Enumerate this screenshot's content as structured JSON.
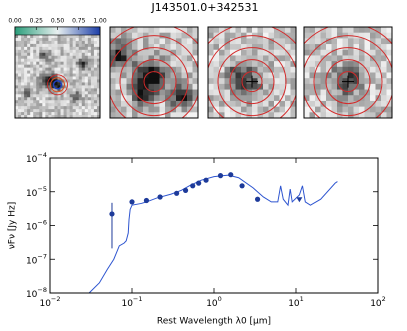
{
  "chart_data": {
    "type": "line",
    "title": "J143501.0+342531",
    "xlabel": "Rest Wavelength λ0 [μm]",
    "ylabel": "νFν [Jy Hz]",
    "xlog": true,
    "ylog": true,
    "xlim": [
      0.01,
      100
    ],
    "ylim": [
      1e-08,
      0.0001
    ],
    "xticks": [
      {
        "value": 0.01,
        "label": "10−2"
      },
      {
        "value": 0.1,
        "label": "10−1"
      },
      {
        "value": 1,
        "label": "100"
      },
      {
        "value": 10,
        "label": "101"
      },
      {
        "value": 100,
        "label": "102"
      }
    ],
    "yticks": [
      {
        "value": 1e-08,
        "label": "10−8"
      },
      {
        "value": 1e-07,
        "label": "10−7"
      },
      {
        "value": 1e-06,
        "label": "10−6"
      },
      {
        "value": 1e-05,
        "label": "10−5"
      },
      {
        "value": 0.0001,
        "label": "10−4"
      }
    ],
    "model": {
      "color": "#2e55d0",
      "x": [
        0.03,
        0.04,
        0.05,
        0.06,
        0.07,
        0.08,
        0.085,
        0.09,
        0.092,
        0.095,
        0.1,
        0.13,
        0.15,
        0.2,
        0.3,
        0.4,
        0.5,
        0.7,
        1.0,
        1.5,
        2,
        3,
        4,
        5,
        6,
        6.5,
        7,
        8,
        8.5,
        9,
        11,
        12,
        13,
        15,
        20,
        30,
        32
      ],
      "values": [
        1e-08,
        2e-08,
        5e-08,
        1e-07,
        2.5e-07,
        3e-07,
        3.5e-07,
        6e-07,
        1.5e-06,
        3e-06,
        4e-06,
        4.5e-06,
        5e-06,
        6.5e-06,
        8.5e-06,
        1.1e-05,
        1.5e-05,
        2.2e-05,
        2.8e-05,
        3.1e-05,
        2.6e-05,
        1.3e-05,
        7e-06,
        5e-06,
        5e-06,
        1.5e-05,
        6e-06,
        4e-06,
        1.2e-05,
        5e-06,
        8e-06,
        1.5e-05,
        5e-06,
        4e-06,
        6e-06,
        1.8e-05,
        2e-05
      ]
    },
    "photometry": {
      "color": "#1d3a9a",
      "x": [
        0.057,
        0.1,
        0.15,
        0.22,
        0.35,
        0.45,
        0.55,
        0.65,
        0.8,
        1.2,
        1.6,
        2.2,
        3.4
      ],
      "values": [
        2.2e-06,
        5e-06,
        5.5e-06,
        7e-06,
        9e-06,
        1.1e-05,
        1.5e-05,
        1.8e-05,
        2.2e-05,
        3e-05,
        3.2e-05,
        1.5e-05,
        6e-06
      ],
      "yerr_lower": [
        2.1e-07,
        null,
        null,
        null,
        null,
        null,
        null,
        null,
        null,
        null,
        null,
        null,
        null
      ],
      "yerr_upper": [
        4.7e-06,
        null,
        null,
        null,
        null,
        null,
        null,
        null,
        null,
        null,
        null,
        null,
        null
      ]
    },
    "upper_limits": {
      "color": "#1d3a9a",
      "x": [
        11
      ],
      "values": [
        6e-06
      ]
    }
  },
  "colorbar": {
    "lim": [
      0,
      1
    ],
    "colors": [
      "#2a9d7a",
      "#e8f0f0",
      "#1c3ea8"
    ],
    "ticks": [
      {
        "value": 0,
        "label": "0.00"
      },
      {
        "value": 0.25,
        "label": "0.25"
      },
      {
        "value": 0.5,
        "label": "0.50"
      },
      {
        "value": 0.75,
        "label": "0.75"
      },
      {
        "value": 1,
        "label": "1.00"
      }
    ]
  }
}
